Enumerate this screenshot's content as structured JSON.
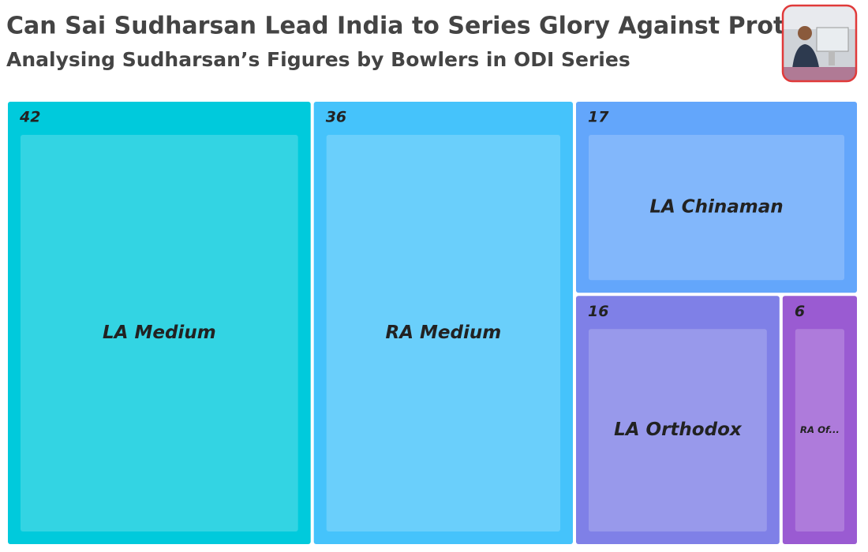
{
  "chart_data": {
    "type": "treemap",
    "title": "Can Sai Sudharsan Lead India to Series Glory Against Proteas?",
    "subtitle": "Analysing Sudharsan’s Figures by Bowlers in ODI Series",
    "categories": [
      "LA Medium",
      "RA Medium",
      "LA Chinaman",
      "LA Orthodox",
      "RA Of..."
    ],
    "values": [
      42,
      36,
      17,
      16,
      6
    ],
    "colors": [
      "#00cadc",
      "#45c3fb",
      "#63a6fb",
      "#7f80e7",
      "#9a5bd2"
    ]
  }
}
